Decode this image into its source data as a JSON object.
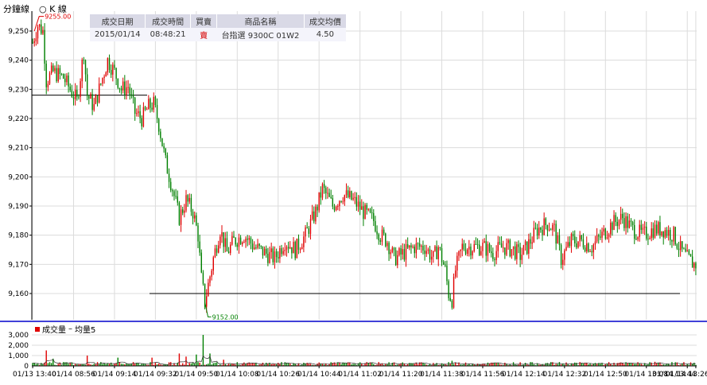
{
  "toolbar": {
    "tab_minute": "分鐘線",
    "tab_kline": "K 線",
    "kline_icon": "circle-icon"
  },
  "trade_table": {
    "headers": [
      "成交日期",
      "成交時間",
      "買賣",
      "商品名稱",
      "成交均價"
    ],
    "row": [
      "2015/01/14",
      "08:48:21",
      "賣",
      "台指選 9300C 01W2",
      "4.50"
    ]
  },
  "volume_legend": {
    "label_volume": "成交量",
    "label_avg": "均量5"
  },
  "colors": {
    "up": "#e00000",
    "down": "#008000",
    "axis": "#000000",
    "grid": "#dcdcdc",
    "divider": "#0000cc"
  },
  "chart_data": [
    {
      "type": "candlestick",
      "ylim": [
        9150,
        9260
      ],
      "yticks": [
        9160,
        9170,
        9180,
        9190,
        9200,
        9210,
        9220,
        9230,
        9240,
        9250
      ],
      "ytick_labels": [
        "9,160",
        "9,170",
        "9,180",
        "9,190",
        "9,200",
        "9,210",
        "9,220",
        "9,230",
        "9,240",
        "9,250"
      ],
      "annotations": [
        {
          "text": "9255.00",
          "value": 9255,
          "at": "first-bar"
        },
        {
          "text": "9152.00",
          "value": 9152,
          "at": "low-bar"
        }
      ],
      "reference_lines": [
        {
          "value": 9228,
          "from": "01/13 13:40",
          "to": "01/14 09:20"
        },
        {
          "value": 9160,
          "from": "01/14 09:40",
          "to": "01/14 13:26"
        }
      ],
      "close_path": [
        [
          0,
          9246
        ],
        [
          3,
          9252
        ],
        [
          6,
          9250
        ],
        [
          8,
          9233
        ],
        [
          12,
          9236
        ],
        [
          18,
          9234
        ],
        [
          24,
          9228
        ],
        [
          26,
          9226
        ],
        [
          30,
          9243
        ],
        [
          32,
          9228
        ],
        [
          36,
          9224
        ],
        [
          40,
          9232
        ],
        [
          44,
          9240
        ],
        [
          48,
          9236
        ],
        [
          52,
          9230
        ],
        [
          56,
          9231
        ],
        [
          60,
          9222
        ],
        [
          64,
          9220
        ],
        [
          68,
          9224
        ],
        [
          71,
          9225
        ],
        [
          74,
          9218
        ],
        [
          78,
          9205
        ],
        [
          82,
          9196
        ],
        [
          86,
          9186
        ],
        [
          90,
          9192
        ],
        [
          94,
          9188
        ],
        [
          97,
          9180
        ],
        [
          99,
          9165
        ],
        [
          101,
          9157
        ],
        [
          103,
          9163
        ],
        [
          106,
          9172
        ],
        [
          110,
          9182
        ],
        [
          114,
          9174
        ],
        [
          118,
          9178
        ],
        [
          124,
          9180
        ],
        [
          130,
          9176
        ],
        [
          136,
          9174
        ],
        [
          142,
          9172
        ],
        [
          148,
          9178
        ],
        [
          154,
          9175
        ],
        [
          160,
          9180
        ],
        [
          166,
          9188
        ],
        [
          170,
          9196
        ],
        [
          176,
          9190
        ],
        [
          182,
          9194
        ],
        [
          188,
          9192
        ],
        [
          194,
          9188
        ],
        [
          200,
          9185
        ],
        [
          204,
          9180
        ],
        [
          208,
          9178
        ],
        [
          212,
          9172
        ],
        [
          218,
          9174
        ],
        [
          224,
          9176
        ],
        [
          230,
          9176
        ],
        [
          235,
          9172
        ],
        [
          238,
          9176
        ],
        [
          242,
          9168
        ],
        [
          244,
          9160
        ],
        [
          246,
          9158
        ],
        [
          248,
          9168
        ],
        [
          252,
          9176
        ],
        [
          258,
          9176
        ],
        [
          264,
          9176
        ],
        [
          270,
          9174
        ],
        [
          276,
          9176
        ],
        [
          282,
          9175
        ],
        [
          286,
          9173
        ],
        [
          290,
          9176
        ],
        [
          296,
          9182
        ],
        [
          302,
          9184
        ],
        [
          306,
          9182
        ],
        [
          310,
          9172
        ],
        [
          316,
          9178
        ],
        [
          322,
          9178
        ],
        [
          328,
          9176
        ],
        [
          334,
          9180
        ],
        [
          340,
          9184
        ],
        [
          346,
          9186
        ],
        [
          352,
          9182
        ],
        [
          358,
          9180
        ],
        [
          364,
          9182
        ],
        [
          370,
          9182
        ],
        [
          376,
          9180
        ],
        [
          380,
          9175
        ],
        [
          384,
          9172
        ],
        [
          388,
          9170
        ],
        [
          389,
          9170
        ]
      ],
      "xtick_labels": [
        "01/13 13:40",
        "01/14 08:56",
        "01/14 09:14",
        "01/14 09:32",
        "01/14 09:50",
        "01/14 10:08",
        "01/14 10:26",
        "01/14 10:44",
        "01/14 11:02",
        "01/14 11:20",
        "01/14 11:38",
        "01/14 11:56",
        "01/14 12:14",
        "01/14 12:32",
        "01/14 12:50",
        "01/14 13:08",
        "01/14 13:26",
        "01/14 13:44"
      ]
    },
    {
      "type": "bar",
      "series": [
        {
          "name": "成交量"
        },
        {
          "name": "均量5"
        }
      ],
      "ylim": [
        0,
        3000
      ],
      "yticks": [
        0,
        1000,
        2000,
        3000
      ],
      "ytick_labels": [
        "0",
        "1,000",
        "2,000",
        "3,000"
      ],
      "spikes": [
        {
          "index": 8,
          "value": 1500
        },
        {
          "index": 12,
          "value": 700
        },
        {
          "index": 32,
          "value": 1000
        },
        {
          "index": 50,
          "value": 800
        },
        {
          "index": 70,
          "value": 800
        },
        {
          "index": 86,
          "value": 1200
        },
        {
          "index": 90,
          "value": 900
        },
        {
          "index": 96,
          "value": 1100
        },
        {
          "index": 100,
          "value": 3000
        },
        {
          "index": 104,
          "value": 1200
        },
        {
          "index": 112,
          "value": 600
        },
        {
          "index": 246,
          "value": 500
        },
        {
          "index": 365,
          "value": 400
        }
      ],
      "baseline_volume": 220
    }
  ]
}
